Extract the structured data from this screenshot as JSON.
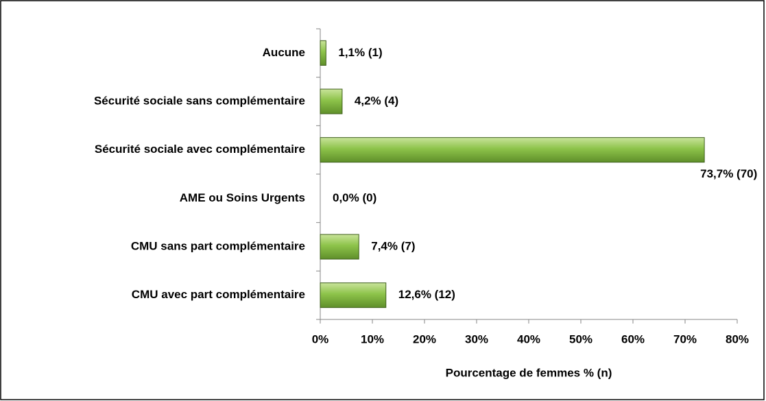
{
  "chart_data": {
    "type": "bar",
    "orientation": "horizontal",
    "x_label": "Pourcentage de femmes % (n)",
    "categories": [
      "Aucune",
      "Sécurité sociale sans complémentaire",
      "Sécurité sociale avec complémentaire",
      "AME ou Soins Urgents",
      "CMU sans part complémentaire",
      "CMU avec part complémentaire"
    ],
    "values": [
      1.1,
      4.2,
      73.7,
      0.0,
      7.4,
      12.6
    ],
    "value_labels": [
      "1,1% (1)",
      "4,2% (4)",
      "73,7% (70)",
      "0,0% (0)",
      "7,4% (7)",
      "12,6% (12)"
    ],
    "color": "#8dc34a",
    "xlim": [
      0,
      80
    ],
    "xticks": [
      {
        "value": 0,
        "label": "0%"
      },
      {
        "value": 10,
        "label": "10%"
      },
      {
        "value": 20,
        "label": "20%"
      },
      {
        "value": 30,
        "label": "30%"
      },
      {
        "value": 40,
        "label": "40%"
      },
      {
        "value": 50,
        "label": "50%"
      },
      {
        "value": 60,
        "label": "60%"
      },
      {
        "value": 70,
        "label": "70%"
      },
      {
        "value": 80,
        "label": "80%"
      }
    ]
  }
}
